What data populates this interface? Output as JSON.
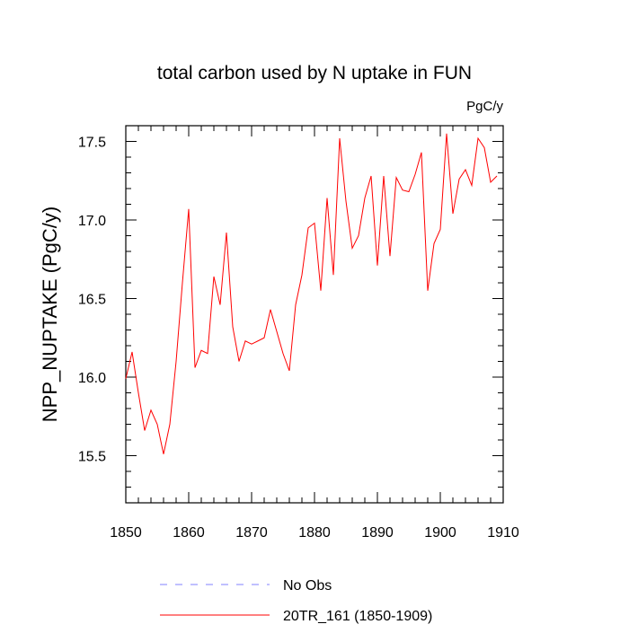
{
  "chart_data": {
    "type": "line",
    "title": "total carbon used by N uptake in FUN",
    "units_label": "PgC/y",
    "xlabel": "",
    "ylabel": "NPP_NUPTAKE  (PgC/y)",
    "xlim": [
      1850,
      1910
    ],
    "ylim": [
      15.2,
      17.6
    ],
    "x_ticks": [
      1850,
      1860,
      1870,
      1880,
      1890,
      1900,
      1910
    ],
    "y_ticks": [
      15.5,
      16.0,
      16.5,
      17.0,
      17.5
    ],
    "y_tick_labels": [
      "15.5",
      "16.0",
      "16.5",
      "17.0",
      "17.5"
    ],
    "legend_position": "bottom",
    "series": [
      {
        "name": "20TR_161 (1850-1909)",
        "color": "#ff0000",
        "style": "solid",
        "x": [
          1850,
          1851,
          1852,
          1853,
          1854,
          1855,
          1856,
          1857,
          1858,
          1859,
          1860,
          1861,
          1862,
          1863,
          1864,
          1865,
          1866,
          1867,
          1868,
          1869,
          1870,
          1871,
          1872,
          1873,
          1874,
          1875,
          1876,
          1877,
          1878,
          1879,
          1880,
          1881,
          1882,
          1883,
          1884,
          1885,
          1886,
          1887,
          1888,
          1889,
          1890,
          1891,
          1892,
          1893,
          1894,
          1895,
          1896,
          1897,
          1898,
          1899,
          1900,
          1901,
          1902,
          1903,
          1904,
          1905,
          1906,
          1907,
          1908,
          1909
        ],
        "values": [
          15.99,
          16.16,
          15.9,
          15.66,
          15.79,
          15.7,
          15.51,
          15.7,
          16.1,
          16.6,
          17.07,
          16.06,
          16.17,
          16.15,
          16.64,
          16.46,
          16.92,
          16.32,
          16.1,
          16.23,
          16.21,
          16.23,
          16.25,
          16.43,
          16.29,
          16.15,
          16.04,
          16.46,
          16.65,
          16.95,
          16.98,
          16.55,
          17.14,
          16.65,
          17.52,
          17.12,
          16.82,
          16.9,
          17.14,
          17.28,
          16.71,
          17.28,
          16.77,
          17.27,
          17.19,
          17.18,
          17.29,
          17.43,
          16.55,
          16.85,
          16.94,
          17.55,
          17.04,
          17.26,
          17.32,
          17.22,
          17.52,
          17.46,
          17.24,
          17.28
        ]
      },
      {
        "name": "No Obs",
        "color": "#8080ff",
        "style": "dashed",
        "x": [],
        "values": []
      }
    ]
  }
}
